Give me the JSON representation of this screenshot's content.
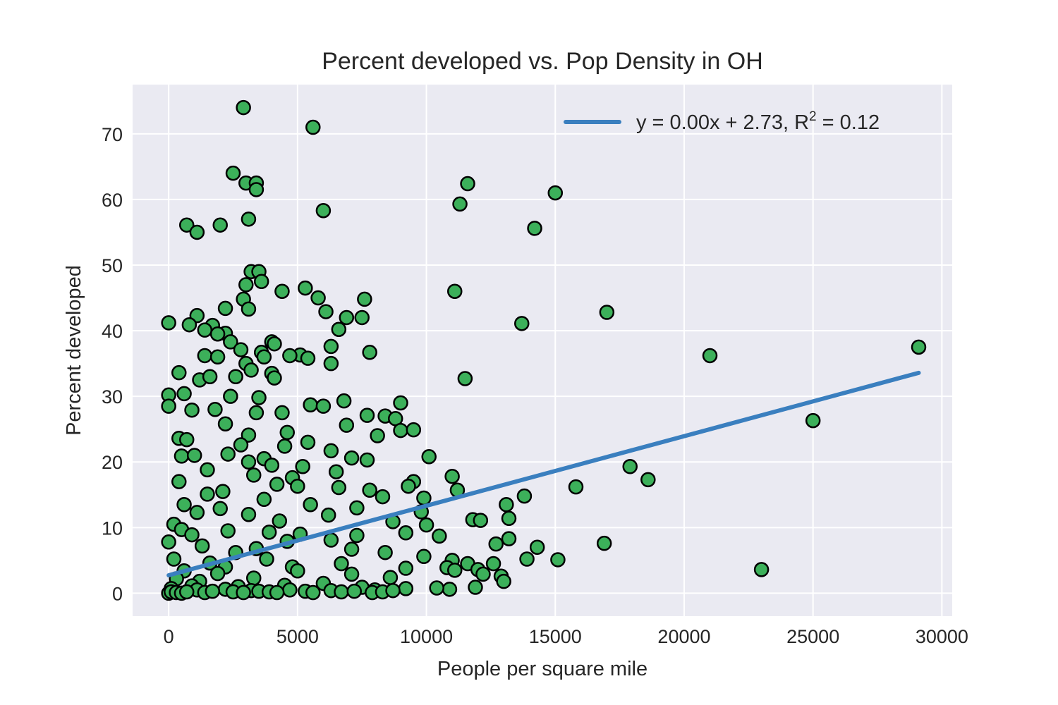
{
  "chart_data": {
    "type": "scatter",
    "title": "Percent developed vs. Pop Density in OH",
    "xlabel": "People per square mile",
    "ylabel": "Percent developed",
    "xlim": [
      -1400,
      30400
    ],
    "ylim": [
      -3.5,
      77.5
    ],
    "xticks": [
      0,
      5000,
      10000,
      15000,
      20000,
      25000,
      30000
    ],
    "yticks": [
      0,
      10,
      20,
      30,
      40,
      50,
      60,
      70
    ],
    "grid": true,
    "legend_position": "top-right",
    "colors": {
      "plot_background": "#eaeaf2",
      "grid": "#ffffff",
      "point_fill": "#3cb05a",
      "point_edge": "#000000",
      "fit_line": "#3a7fbf"
    },
    "series": [
      {
        "type": "scatter",
        "points": [
          [
            2900,
            74
          ],
          [
            5600,
            71
          ],
          [
            2500,
            64
          ],
          [
            3000,
            62.5
          ],
          [
            3400,
            62.5
          ],
          [
            3400,
            61.5
          ],
          [
            11600,
            62.4
          ],
          [
            15000,
            61
          ],
          [
            11300,
            59.3
          ],
          [
            6000,
            58.3
          ],
          [
            3100,
            57
          ],
          [
            700,
            56.1
          ],
          [
            2000,
            56.1
          ],
          [
            1100,
            55
          ],
          [
            14200,
            55.6
          ],
          [
            3200,
            49
          ],
          [
            3500,
            49
          ],
          [
            3600,
            47.5
          ],
          [
            3000,
            47
          ],
          [
            5300,
            46.5
          ],
          [
            4400,
            46
          ],
          [
            11100,
            46
          ],
          [
            5800,
            45
          ],
          [
            2900,
            44.8
          ],
          [
            7600,
            44.8
          ],
          [
            2200,
            43.4
          ],
          [
            3100,
            43.3
          ],
          [
            6100,
            42.9
          ],
          [
            17000,
            42.8
          ],
          [
            1100,
            42.3
          ],
          [
            6900,
            42
          ],
          [
            7500,
            42
          ],
          [
            0,
            41.2
          ],
          [
            800,
            40.9
          ],
          [
            1700,
            40.8
          ],
          [
            13700,
            41.1
          ],
          [
            1400,
            40.1
          ],
          [
            6600,
            40.2
          ],
          [
            2200,
            39.6
          ],
          [
            1900,
            39.5
          ],
          [
            4000,
            38.3
          ],
          [
            4100,
            38
          ],
          [
            2400,
            38.3
          ],
          [
            6300,
            37.6
          ],
          [
            29100,
            37.5
          ],
          [
            2800,
            37.1
          ],
          [
            3600,
            36.7
          ],
          [
            7800,
            36.7
          ],
          [
            5100,
            36.3
          ],
          [
            4700,
            36.2
          ],
          [
            21000,
            36.2
          ],
          [
            1400,
            36.2
          ],
          [
            1900,
            36
          ],
          [
            3700,
            36
          ],
          [
            5400,
            35.8
          ],
          [
            3000,
            35
          ],
          [
            6300,
            35
          ],
          [
            3200,
            34
          ],
          [
            400,
            33.6
          ],
          [
            4000,
            33.5
          ],
          [
            1200,
            32.5
          ],
          [
            4100,
            32.8
          ],
          [
            11500,
            32.7
          ],
          [
            1600,
            33
          ],
          [
            2600,
            33
          ],
          [
            0,
            30.2
          ],
          [
            600,
            30.4
          ],
          [
            2400,
            30
          ],
          [
            3500,
            29.8
          ],
          [
            6800,
            29.3
          ],
          [
            9000,
            29
          ],
          [
            5500,
            28.7
          ],
          [
            6000,
            28.5
          ],
          [
            0,
            28.5
          ],
          [
            900,
            27.9
          ],
          [
            1800,
            28
          ],
          [
            3400,
            27.5
          ],
          [
            4400,
            27.5
          ],
          [
            7700,
            27.1
          ],
          [
            8400,
            27
          ],
          [
            8800,
            26.6
          ],
          [
            25000,
            26.3
          ],
          [
            2200,
            25.8
          ],
          [
            6900,
            25.6
          ],
          [
            9000,
            24.8
          ],
          [
            9500,
            24.9
          ],
          [
            4600,
            24.5
          ],
          [
            3100,
            24.1
          ],
          [
            8100,
            24
          ],
          [
            400,
            23.6
          ],
          [
            700,
            23.4
          ],
          [
            5400,
            23
          ],
          [
            2800,
            22.6
          ],
          [
            4500,
            22.4
          ],
          [
            6300,
            21.7
          ],
          [
            2300,
            21.2
          ],
          [
            10100,
            20.8
          ],
          [
            500,
            20.9
          ],
          [
            1000,
            21
          ],
          [
            3700,
            20.5
          ],
          [
            7100,
            20.6
          ],
          [
            7700,
            20.3
          ],
          [
            3100,
            20
          ],
          [
            4000,
            19.5
          ],
          [
            5200,
            19.3
          ],
          [
            17900,
            19.3
          ],
          [
            1500,
            18.8
          ],
          [
            6500,
            18.5
          ],
          [
            3300,
            18
          ],
          [
            4800,
            17.6
          ],
          [
            11000,
            17.8
          ],
          [
            18600,
            17.3
          ],
          [
            400,
            17
          ],
          [
            9500,
            17
          ],
          [
            4200,
            16.6
          ],
          [
            9300,
            16.3
          ],
          [
            5000,
            16.3
          ],
          [
            15800,
            16.2
          ],
          [
            6600,
            16.1
          ],
          [
            11200,
            15.7
          ],
          [
            2100,
            15.5
          ],
          [
            7800,
            15.7
          ],
          [
            1500,
            15.1
          ],
          [
            8300,
            14.7
          ],
          [
            13800,
            14.8
          ],
          [
            3700,
            14.3
          ],
          [
            9900,
            14.5
          ],
          [
            600,
            13.5
          ],
          [
            5500,
            13.5
          ],
          [
            13100,
            13.5
          ],
          [
            7300,
            13
          ],
          [
            2000,
            12.9
          ],
          [
            9800,
            12.4
          ],
          [
            1100,
            12.3
          ],
          [
            3100,
            12
          ],
          [
            6200,
            11.9
          ],
          [
            13200,
            11.4
          ],
          [
            11800,
            11.2
          ],
          [
            12100,
            11.1
          ],
          [
            4300,
            11
          ],
          [
            8700,
            10.9
          ],
          [
            200,
            10.5
          ],
          [
            10000,
            10.4
          ],
          [
            500,
            9.7
          ],
          [
            2300,
            9.5
          ],
          [
            3900,
            9.3
          ],
          [
            9200,
            9.2
          ],
          [
            5100,
            9
          ],
          [
            900,
            8.9
          ],
          [
            10500,
            8.7
          ],
          [
            7300,
            8.8
          ],
          [
            13200,
            8.3
          ],
          [
            6300,
            8.1
          ],
          [
            0,
            7.8
          ],
          [
            4600,
            7.9
          ],
          [
            12700,
            7.5
          ],
          [
            16900,
            7.6
          ],
          [
            1300,
            7.2
          ],
          [
            14300,
            7
          ],
          [
            3400,
            6.8
          ],
          [
            7100,
            6.7
          ],
          [
            2600,
            6.2
          ],
          [
            8400,
            6.2
          ],
          [
            9900,
            5.6
          ],
          [
            200,
            5.2
          ],
          [
            3800,
            5.2
          ],
          [
            11000,
            5
          ],
          [
            13900,
            5.2
          ],
          [
            15100,
            5.1
          ],
          [
            1600,
            4.6
          ],
          [
            6700,
            4.5
          ],
          [
            11600,
            4.5
          ],
          [
            12600,
            4.5
          ],
          [
            2200,
            4
          ],
          [
            4800,
            4
          ],
          [
            9200,
            3.8
          ],
          [
            10800,
            3.9
          ],
          [
            11100,
            3.5
          ],
          [
            12000,
            3.6
          ],
          [
            600,
            3.4
          ],
          [
            5000,
            3.4
          ],
          [
            23000,
            3.6
          ],
          [
            1900,
            3
          ],
          [
            7100,
            2.9
          ],
          [
            12200,
            2.9
          ],
          [
            300,
            2.2
          ],
          [
            3300,
            2.3
          ],
          [
            8600,
            2.4
          ],
          [
            12900,
            2.6
          ],
          [
            13000,
            1.8
          ],
          [
            1200,
            1.8
          ],
          [
            6000,
            1.5
          ],
          [
            900,
            1.1
          ],
          [
            2700,
            1
          ],
          [
            4500,
            1.2
          ],
          [
            7500,
            0.9
          ],
          [
            10900,
            0.6
          ],
          [
            11900,
            0.9
          ],
          [
            100,
            0.7
          ],
          [
            1100,
            0.5
          ],
          [
            2200,
            0.6
          ],
          [
            3200,
            0.4
          ],
          [
            4700,
            0.5
          ],
          [
            6300,
            0.4
          ],
          [
            8000,
            0.5
          ],
          [
            9200,
            0.7
          ],
          [
            10400,
            0.8
          ],
          [
            0,
            0
          ],
          [
            100,
            0.2
          ],
          [
            300,
            0.1
          ],
          [
            500,
            0
          ],
          [
            700,
            0.2
          ],
          [
            1400,
            0.1
          ],
          [
            1700,
            0.3
          ],
          [
            2500,
            0.2
          ],
          [
            2900,
            0.1
          ],
          [
            3500,
            0.3
          ],
          [
            3900,
            0.2
          ],
          [
            4200,
            0.1
          ],
          [
            5300,
            0.3
          ],
          [
            5600,
            0.1
          ],
          [
            6700,
            0.2
          ],
          [
            7200,
            0.3
          ],
          [
            7900,
            0.1
          ],
          [
            8300,
            0.2
          ],
          [
            8700,
            0.4
          ]
        ]
      },
      {
        "type": "line",
        "name": "y = 0.00x + 2.73, R",
        "legend_superscript": "2",
        "legend_suffix": " = 0.12",
        "slope": 0.00106,
        "intercept": 2.73,
        "x_range": [
          0,
          29100
        ]
      }
    ]
  }
}
